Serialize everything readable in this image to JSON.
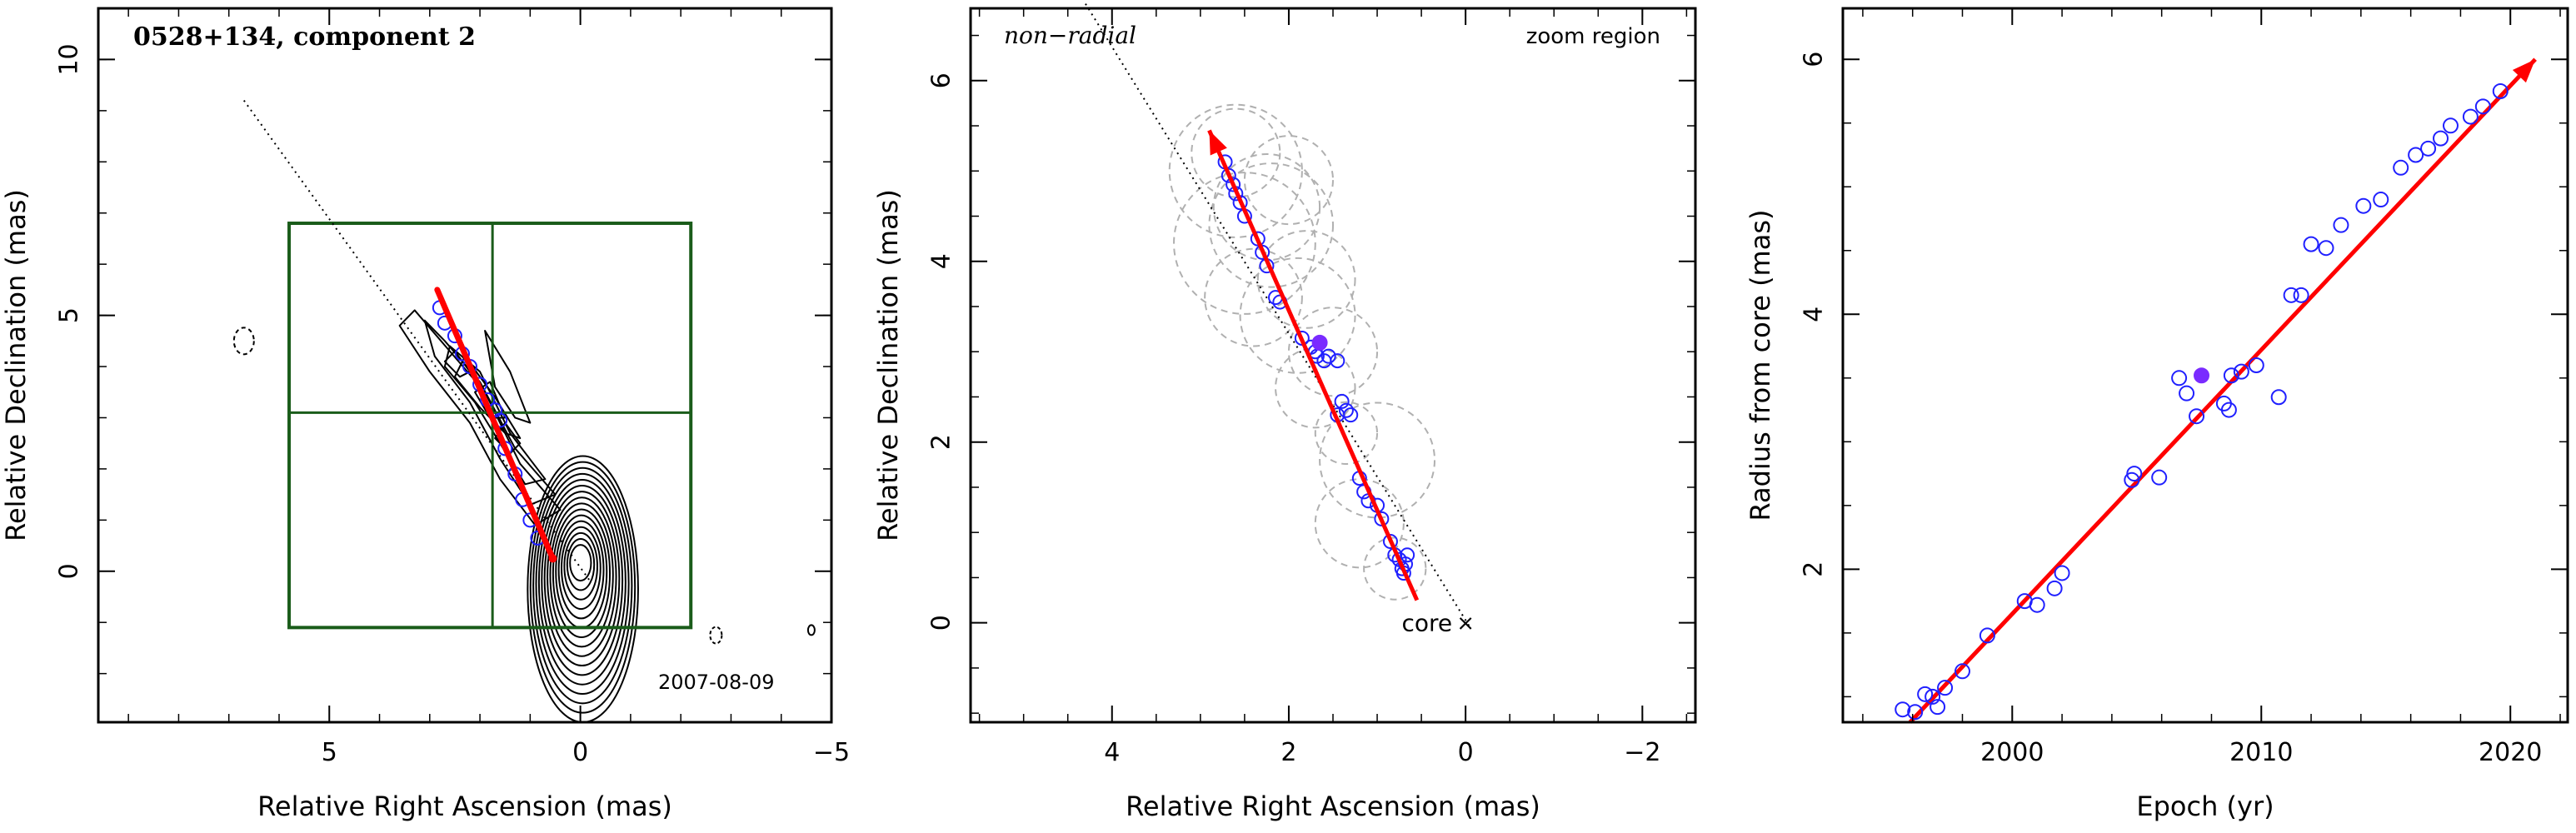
{
  "chart_data": [
    {
      "type": "scatter",
      "subtype": "vlbi-image",
      "title": "0528+134, component 2",
      "date_label": "2007-08-09",
      "xlabel": "Relative Right Ascension (mas)",
      "ylabel": "Relative Declination (mas)",
      "xlim": [
        9.6,
        -5
      ],
      "ylim": [
        -2.95,
        11
      ],
      "x_reversed": true,
      "xticks": [
        5,
        0,
        -5
      ],
      "yticks": [
        0,
        5,
        10
      ],
      "grid": false,
      "core": [
        0,
        0
      ],
      "zoom_box": {
        "x": [
          5.8,
          -2.2
        ],
        "y": [
          -1.1,
          6.8
        ]
      },
      "crosshair": {
        "x": 1.75,
        "y": 3.1
      },
      "non_radial_line": {
        "x": [
          6.7,
          -0.2
        ],
        "y": [
          9.2,
          -0.2
        ]
      },
      "motion_vector": {
        "start": [
          0.55,
          0.25
        ],
        "end": [
          2.85,
          5.5
        ]
      },
      "contour_levels": 16,
      "points": {
        "x": [
          2.8,
          2.7,
          2.5,
          2.35,
          2.2,
          2.0,
          1.85,
          1.7,
          1.6,
          1.5,
          1.3,
          1.15,
          1.0,
          0.85
        ],
        "y": [
          5.15,
          4.85,
          4.6,
          4.25,
          4.0,
          3.65,
          3.35,
          3.15,
          2.95,
          2.4,
          1.9,
          1.4,
          1.0,
          0.65
        ]
      }
    },
    {
      "type": "scatter",
      "subtype": "component-positions",
      "title": "",
      "left_label": "non−radial",
      "right_label": "zoom region",
      "core_label": "core",
      "xlabel": "Relative Right Ascension (mas)",
      "ylabel": "Relative Declination (mas)",
      "xlim": [
        5.6,
        -2.6
      ],
      "ylim": [
        -1.1,
        6.8
      ],
      "x_reversed": true,
      "xticks": [
        4,
        2,
        0,
        -2
      ],
      "yticks": [
        0,
        2,
        4,
        6
      ],
      "grid": false,
      "core": [
        0,
        0
      ],
      "non_radial_line": {
        "x": [
          4.3,
          -0.05
        ],
        "y": [
          6.85,
          -0.05
        ]
      },
      "motion_vector": {
        "start": [
          0.55,
          0.25
        ],
        "end": [
          2.9,
          5.45
        ]
      },
      "highlight_point": [
        1.65,
        3.1
      ],
      "points": {
        "x": [
          2.72,
          2.68,
          2.63,
          2.6,
          2.55,
          2.5,
          2.35,
          2.3,
          2.25,
          2.15,
          2.1,
          1.85,
          1.75,
          1.7,
          1.68,
          1.6,
          1.55,
          1.45,
          1.4,
          1.45,
          1.35,
          1.3,
          1.2,
          1.15,
          1.1,
          1.0,
          0.95,
          0.85,
          0.8,
          0.75,
          0.72,
          0.7,
          0.68,
          0.66
        ],
        "y": [
          5.1,
          4.95,
          4.85,
          4.75,
          4.65,
          4.5,
          4.25,
          4.1,
          3.95,
          3.6,
          3.55,
          3.15,
          3.05,
          3.0,
          2.95,
          2.9,
          2.95,
          2.9,
          2.45,
          2.3,
          2.35,
          2.3,
          1.6,
          1.45,
          1.35,
          1.3,
          1.15,
          0.9,
          0.75,
          0.7,
          0.6,
          0.55,
          0.65,
          0.75
        ]
      },
      "fit_circles": {
        "cx": [
          2.6,
          2.25,
          2.5,
          2.0,
          2.4,
          2.6,
          1.9,
          2.2,
          1.5,
          1.7,
          1.8,
          1.35,
          1.0,
          1.2,
          0.8
        ],
        "cy": [
          5.0,
          4.6,
          4.2,
          4.9,
          3.6,
          5.2,
          3.4,
          4.4,
          3.0,
          2.6,
          3.8,
          2.1,
          1.8,
          1.1,
          0.6
        ],
        "r": [
          0.75,
          0.6,
          0.8,
          0.5,
          0.55,
          0.5,
          0.65,
          0.7,
          0.5,
          0.45,
          0.55,
          0.35,
          0.65,
          0.5,
          0.35
        ]
      }
    },
    {
      "type": "scatter",
      "subtype": "radius-vs-epoch",
      "title": "",
      "xlabel": "Epoch (yr)",
      "ylabel": "Radius from core (mas)",
      "xlim": [
        1993.2,
        2022.3
      ],
      "ylim": [
        0.8,
        6.4
      ],
      "xticks": [
        2000,
        2010,
        2020
      ],
      "yticks": [
        2,
        4,
        6
      ],
      "grid": false,
      "fit_line": {
        "x": [
          1995.9,
          2021.0
        ],
        "y": [
          0.8,
          6.0
        ]
      },
      "highlight_point": {
        "x": 2007.6,
        "y": 3.52
      },
      "points": {
        "x": [
          1995.6,
          1996.1,
          1996.5,
          1996.8,
          1997.0,
          1997.3,
          1998.0,
          1999.0,
          2000.5,
          2001.0,
          2001.7,
          2002.0,
          2004.8,
          2004.9,
          2005.9,
          2006.7,
          2007.0,
          2007.4,
          2008.5,
          2008.7,
          2008.8,
          2009.2,
          2009.8,
          2010.7,
          2011.2,
          2011.6,
          2012.0,
          2012.6,
          2013.2,
          2014.1,
          2014.8,
          2015.6,
          2016.2,
          2016.7,
          2017.2,
          2017.6,
          2018.4,
          2018.9,
          2019.6
        ],
        "y": [
          0.9,
          0.88,
          1.02,
          1.0,
          0.92,
          1.07,
          1.2,
          1.48,
          1.75,
          1.72,
          1.85,
          1.97,
          2.7,
          2.75,
          2.72,
          3.5,
          3.38,
          3.2,
          3.3,
          3.25,
          3.52,
          3.55,
          3.6,
          3.35,
          4.15,
          4.15,
          4.55,
          4.52,
          4.7,
          4.85,
          4.9,
          5.15,
          5.25,
          5.3,
          5.38,
          5.48,
          5.55,
          5.63,
          5.75
        ]
      }
    }
  ],
  "colors": {
    "axis": "#000000",
    "fit_vector": "#ff0000",
    "points": "#2020ff",
    "highlight": "#7a2bff",
    "zoom_box": "#1a5c1a",
    "fit_circles": "#b0b0b0",
    "contours": "#000000"
  },
  "symbols": {
    "core_marker": "×"
  }
}
